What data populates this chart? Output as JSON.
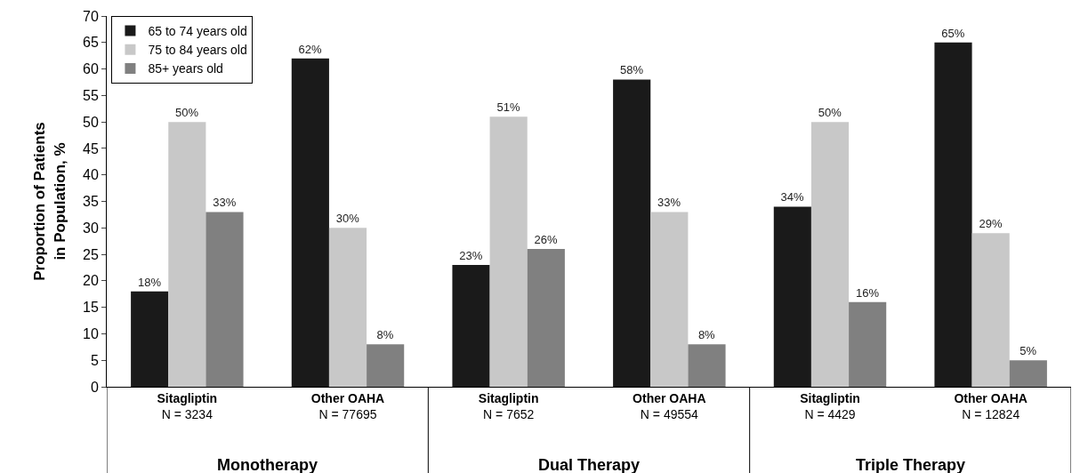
{
  "chart_data": {
    "type": "bar",
    "ylabel": "Proportion of Patients\nin Population, %",
    "categories": [
      "Sitagliptin\nN = 3234",
      "Other OAHA\nN = 77695",
      "Sitagliptin\nN = 7652",
      "Other OAHA\nN = 49554",
      "Sitagliptin\nN = 4429",
      "Other OAHA\nN = 12824"
    ],
    "series": [
      {
        "name": "65 to 74 years old",
        "color": "#1a1a1a",
        "values": [
          18,
          62,
          23,
          58,
          34,
          65
        ],
        "value_labels": [
          "18%",
          "62%",
          "23%",
          "58%",
          "34%",
          "65%"
        ]
      },
      {
        "name": "75 to 84 years old",
        "color": "#c8c8c8",
        "values": [
          50,
          30,
          51,
          33,
          50,
          29
        ],
        "value_labels": [
          "50%",
          "30%",
          "51%",
          "33%",
          "50%",
          "29%"
        ]
      },
      {
        "name": "85+ years old",
        "color": "#808080",
        "values": [
          33,
          8,
          26,
          8,
          16,
          5
        ],
        "value_labels": [
          "33%",
          "8%",
          "26%",
          "8%",
          "16%",
          "5%"
        ]
      }
    ],
    "annotations": [
      "Monotherapy",
      "Dual Therapy",
      "Triple Therapy"
    ],
    "ylim": [
      0,
      70
    ],
    "yticks": [
      0,
      5,
      10,
      15,
      20,
      25,
      30,
      35,
      40,
      45,
      50,
      55,
      60,
      65,
      70
    ],
    "legend": "top left"
  }
}
